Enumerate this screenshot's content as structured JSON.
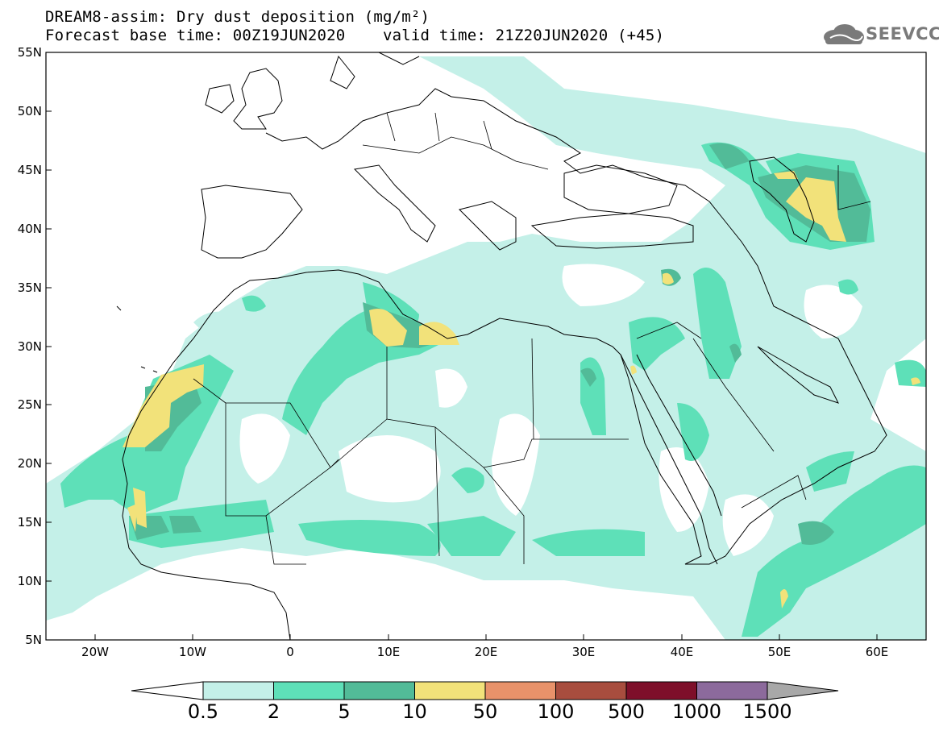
{
  "title_line1": "DREAM8-assim: Dry dust deposition (mg/m²)",
  "title_line2": "Forecast base time: 00Z19JUN2020    valid time: 21Z20JUN2020 (+45)",
  "logo": {
    "text": "SEEVCCC",
    "icon": "cloud-logo-icon"
  },
  "map": {
    "lon_range": [
      -25,
      65
    ],
    "lat_range": [
      5,
      55
    ],
    "lat_labels": [
      "55N",
      "50N",
      "45N",
      "40N",
      "35N",
      "30N",
      "25N",
      "20N",
      "15N",
      "10N",
      "5N"
    ],
    "lon_labels": [
      "20W",
      "10W",
      "0",
      "10E",
      "20E",
      "30E",
      "40E",
      "50E",
      "60E"
    ]
  },
  "colorbar": {
    "labels": [
      "0.5",
      "2",
      "5",
      "10",
      "50",
      "100",
      "500",
      "1000",
      "1500"
    ],
    "colors": [
      "#c4f0e8",
      "#5ee0b8",
      "#52bb98",
      "#f2e27a",
      "#e8926a",
      "#a84d3e",
      "#7e0f2a",
      "#8c6a9c"
    ],
    "under_color": "#ffffff",
    "over_color": "#a8a8a8"
  },
  "colors": {
    "frame": "#000000",
    "coast": "#000000"
  }
}
